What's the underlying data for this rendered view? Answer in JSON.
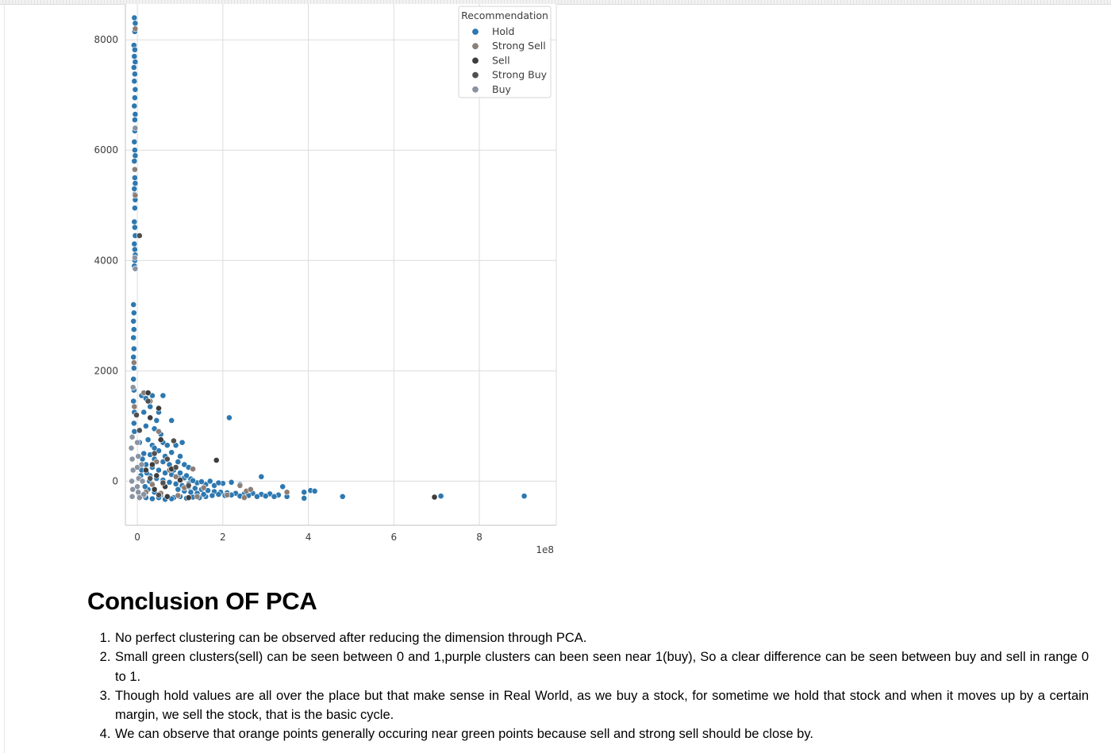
{
  "chart_data": {
    "type": "scatter",
    "xlabel": "",
    "ylabel": "",
    "x_offset_label": "1e8",
    "xlim": [
      -0.28,
      9.8
    ],
    "ylim": [
      -800,
      8650
    ],
    "x_ticks": [
      0,
      2,
      4,
      6,
      8
    ],
    "y_ticks": [
      0,
      2000,
      4000,
      6000,
      8000
    ],
    "x_tick_labels": [
      "0",
      "2",
      "4",
      "6",
      "8"
    ],
    "y_tick_labels": [
      "0",
      "2000",
      "4000",
      "6000",
      "8000"
    ],
    "grid": true,
    "legend": {
      "title": "Recommendation",
      "placement": "top-right",
      "entries": [
        {
          "name": "Hold",
          "color": "#2e78b0"
        },
        {
          "name": "Strong Sell",
          "color": "#8c7f78"
        },
        {
          "name": "Sell",
          "color": "#3d3d3d"
        },
        {
          "name": "Strong Buy",
          "color": "#505050"
        },
        {
          "name": "Buy",
          "color": "#8a93a2"
        }
      ]
    },
    "series": [
      {
        "name": "Hold",
        "color": "#2e78b0",
        "points": [
          [
            -0.07,
            8400
          ],
          [
            -0.05,
            8300
          ],
          [
            -0.06,
            8150
          ],
          [
            -0.08,
            7900
          ],
          [
            -0.06,
            7820
          ],
          [
            -0.07,
            7700
          ],
          [
            -0.05,
            7600
          ],
          [
            -0.08,
            7500
          ],
          [
            -0.06,
            7380
          ],
          [
            -0.07,
            7250
          ],
          [
            -0.05,
            7100
          ],
          [
            -0.06,
            6950
          ],
          [
            -0.07,
            6800
          ],
          [
            -0.05,
            6650
          ],
          [
            -0.06,
            6550
          ],
          [
            -0.06,
            6350
          ],
          [
            -0.07,
            6150
          ],
          [
            -0.06,
            6000
          ],
          [
            -0.05,
            5900
          ],
          [
            -0.07,
            5800
          ],
          [
            -0.06,
            5500
          ],
          [
            -0.05,
            5400
          ],
          [
            -0.07,
            5300
          ],
          [
            -0.06,
            5200
          ],
          [
            -0.05,
            5100
          ],
          [
            -0.06,
            4950
          ],
          [
            -0.07,
            4700
          ],
          [
            -0.06,
            4600
          ],
          [
            -0.05,
            4450
          ],
          [
            -0.07,
            4300
          ],
          [
            -0.06,
            4200
          ],
          [
            -0.05,
            4100
          ],
          [
            -0.06,
            4000
          ],
          [
            -0.07,
            3900
          ],
          [
            -0.09,
            3200
          ],
          [
            -0.08,
            3050
          ],
          [
            -0.09,
            2900
          ],
          [
            -0.08,
            2750
          ],
          [
            -0.09,
            2600
          ],
          [
            -0.08,
            2400
          ],
          [
            -0.09,
            2250
          ],
          [
            -0.08,
            2050
          ],
          [
            -0.09,
            1850
          ],
          [
            -0.08,
            1650
          ],
          [
            -0.09,
            1450
          ],
          [
            -0.07,
            1250
          ],
          [
            -0.08,
            1050
          ],
          [
            -0.07,
            900
          ],
          [
            0.1,
            1550
          ],
          [
            0.2,
            1500
          ],
          [
            0.35,
            1550
          ],
          [
            0.6,
            1550
          ],
          [
            0.3,
            1350
          ],
          [
            0.5,
            1250
          ],
          [
            0.45,
            1100
          ],
          [
            0.8,
            1100
          ],
          [
            0.15,
            1250
          ],
          [
            0.2,
            1000
          ],
          [
            0.4,
            950
          ],
          [
            0.55,
            850
          ],
          [
            0.25,
            750
          ],
          [
            0.35,
            650
          ],
          [
            0.6,
            700
          ],
          [
            0.7,
            650
          ],
          [
            0.9,
            650
          ],
          [
            1.05,
            700
          ],
          [
            0.5,
            550
          ],
          [
            0.8,
            520
          ],
          [
            1.0,
            450
          ],
          [
            0.3,
            480
          ],
          [
            0.4,
            400
          ],
          [
            0.6,
            350
          ],
          [
            0.75,
            300
          ],
          [
            0.95,
            350
          ],
          [
            1.1,
            300
          ],
          [
            1.2,
            250
          ],
          [
            0.2,
            300
          ],
          [
            0.35,
            250
          ],
          [
            0.5,
            200
          ],
          [
            0.65,
            150
          ],
          [
            0.8,
            120
          ],
          [
            0.95,
            90
          ],
          [
            1.1,
            60
          ],
          [
            1.25,
            40
          ],
          [
            0.3,
            100
          ],
          [
            0.45,
            50
          ],
          [
            0.6,
            20
          ],
          [
            0.75,
            -20
          ],
          [
            0.9,
            -50
          ],
          [
            1.05,
            -80
          ],
          [
            1.2,
            -100
          ],
          [
            1.35,
            -130
          ],
          [
            1.5,
            -150
          ],
          [
            1.65,
            -170
          ],
          [
            1.8,
            -190
          ],
          [
            1.95,
            -200
          ],
          [
            2.1,
            -210
          ],
          [
            2.3,
            -220
          ],
          [
            2.5,
            -230
          ],
          [
            2.7,
            -220
          ],
          [
            2.9,
            -240
          ],
          [
            3.1,
            -230
          ],
          [
            3.3,
            -250
          ],
          [
            0.25,
            -150
          ],
          [
            0.4,
            -200
          ],
          [
            0.55,
            -250
          ],
          [
            0.7,
            -280
          ],
          [
            0.85,
            -300
          ],
          [
            1.0,
            -280
          ],
          [
            1.15,
            -310
          ],
          [
            1.3,
            -290
          ],
          [
            1.45,
            -300
          ],
          [
            1.6,
            -280
          ],
          [
            1.75,
            -260
          ],
          [
            1.9,
            -240
          ],
          [
            2.05,
            -260
          ],
          [
            2.2,
            -250
          ],
          [
            2.4,
            -270
          ],
          [
            2.6,
            -260
          ],
          [
            2.8,
            -280
          ],
          [
            3.0,
            -270
          ],
          [
            3.2,
            -280
          ],
          [
            0.2,
            -300
          ],
          [
            0.35,
            -320
          ],
          [
            0.5,
            -300
          ],
          [
            0.65,
            -330
          ],
          [
            0.8,
            -320
          ],
          [
            1.2,
            -50
          ],
          [
            1.4,
            -30
          ],
          [
            1.6,
            -60
          ],
          [
            1.8,
            -80
          ],
          [
            2.0,
            -40
          ],
          [
            2.2,
            -20
          ],
          [
            2.4,
            -60
          ],
          [
            1.3,
            10
          ],
          [
            1.5,
            -10
          ],
          [
            1.7,
            0
          ],
          [
            1.9,
            -30
          ],
          [
            2.15,
            1150
          ],
          [
            2.9,
            80
          ],
          [
            3.4,
            -100
          ],
          [
            3.5,
            -280
          ],
          [
            3.9,
            -200
          ],
          [
            4.05,
            -170
          ],
          [
            4.15,
            -180
          ],
          [
            3.9,
            -310
          ],
          [
            4.8,
            -280
          ],
          [
            7.1,
            -270
          ],
          [
            9.05,
            -270
          ],
          [
            0.05,
            -250
          ],
          [
            0.1,
            200
          ],
          [
            0.15,
            500
          ],
          [
            0.05,
            700
          ],
          [
            0.12,
            400
          ],
          [
            0.08,
            100
          ],
          [
            0.18,
            -100
          ],
          [
            0.28,
            0
          ],
          [
            0.22,
            150
          ],
          [
            0.4,
            600
          ],
          [
            0.65,
            450
          ],
          [
            0.85,
            200
          ],
          [
            1.0,
            150
          ],
          [
            1.15,
            100
          ],
          [
            0.95,
            -150
          ],
          [
            1.1,
            -180
          ],
          [
            1.25,
            -200
          ],
          [
            1.4,
            -220
          ],
          [
            1.55,
            -240
          ]
        ]
      },
      {
        "name": "Strong Sell",
        "color": "#8c7f78",
        "points": [
          [
            -0.05,
            8200
          ],
          [
            -0.06,
            5650
          ],
          [
            -0.05,
            5180
          ],
          [
            -0.08,
            2150
          ],
          [
            -0.07,
            1350
          ],
          [
            0.15,
            1600
          ],
          [
            0.3,
            1450
          ],
          [
            0.5,
            900
          ],
          [
            0.45,
            350
          ],
          [
            0.75,
            200
          ],
          [
            1.3,
            220
          ],
          [
            0.6,
            -50
          ],
          [
            0.9,
            80
          ],
          [
            1.4,
            -280
          ],
          [
            1.55,
            -120
          ],
          [
            2.1,
            -250
          ],
          [
            2.4,
            -80
          ],
          [
            2.55,
            -180
          ],
          [
            2.5,
            -300
          ],
          [
            2.65,
            -150
          ],
          [
            3.5,
            -200
          ],
          [
            0.35,
            -60
          ],
          [
            0.55,
            -220
          ],
          [
            0.2,
            -200
          ],
          [
            0.95,
            -260
          ],
          [
            1.1,
            -120
          ]
        ]
      },
      {
        "name": "Sell",
        "color": "#3d3d3d",
        "points": [
          [
            0.25,
            1600
          ],
          [
            0.5,
            1320
          ],
          [
            0.3,
            1150
          ],
          [
            0.55,
            750
          ],
          [
            0.35,
            300
          ],
          [
            0.2,
            200
          ],
          [
            0.45,
            100
          ],
          [
            0.65,
            -100
          ],
          [
            1.85,
            380
          ],
          [
            0.8,
            220
          ],
          [
            1.0,
            20
          ],
          [
            0.4,
            -150
          ],
          [
            6.95,
            -290
          ],
          [
            0.15,
            -260
          ],
          [
            0.7,
            -280
          ],
          [
            1.2,
            -300
          ]
        ]
      },
      {
        "name": "Strong Buy",
        "color": "#505050",
        "points": [
          [
            0.05,
            4450
          ],
          [
            -0.02,
            1200
          ],
          [
            0.05,
            920
          ],
          [
            0.25,
            1450
          ],
          [
            0.85,
            730
          ],
          [
            0.4,
            500
          ],
          [
            0.7,
            400
          ],
          [
            0.9,
            250
          ],
          [
            0.3,
            50
          ],
          [
            0.6,
            -30
          ],
          [
            1.2,
            -80
          ],
          [
            0.5,
            -250
          ]
        ]
      },
      {
        "name": "Buy",
        "color": "#8a93a2",
        "points": [
          [
            -0.05,
            3850
          ],
          [
            -0.06,
            4050
          ],
          [
            -0.05,
            6400
          ],
          [
            -0.1,
            1700
          ],
          [
            -0.12,
            800
          ],
          [
            -0.14,
            600
          ],
          [
            -0.12,
            400
          ],
          [
            -0.1,
            200
          ],
          [
            -0.13,
            0
          ],
          [
            -0.11,
            -150
          ],
          [
            -0.12,
            -280
          ],
          [
            0.0,
            700
          ],
          [
            0.02,
            450
          ],
          [
            0.0,
            250
          ],
          [
            0.03,
            50
          ],
          [
            0.0,
            -100
          ],
          [
            0.02,
            -200
          ],
          [
            0.05,
            -300
          ],
          [
            0.1,
            300
          ],
          [
            0.12,
            0
          ],
          [
            0.15,
            -240
          ]
        ]
      }
    ]
  },
  "conclusion": {
    "heading": "Conclusion OF PCA",
    "items": [
      "No perfect clustering can be observed after reducing the dimension through PCA.",
      "Small green clusters(sell) can be seen between 0 and 1,purple clusters can been seen near 1(buy), So a clear difference can be seen between buy and sell in range 0 to 1.",
      "Though hold values are all over the place but that make sense in Real World, as we buy a stock, for sometime we hold that stock and when it moves up by a certain margin, we sell the stock, that is the basic cycle.",
      "We can observe that orange points generally occuring near green points because sell and strong sell should be close by."
    ]
  }
}
